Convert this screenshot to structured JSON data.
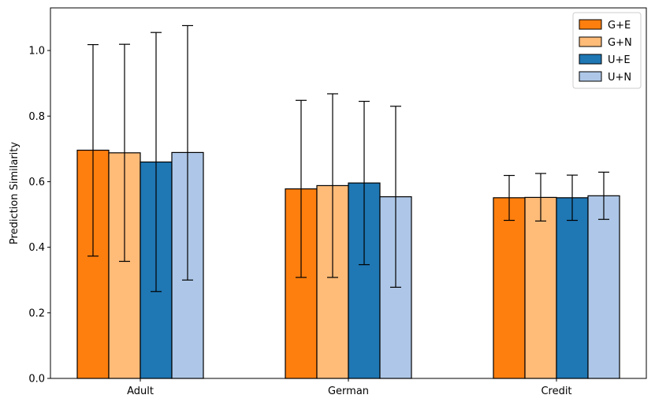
{
  "chart_data": {
    "type": "bar",
    "title": "",
    "xlabel": "",
    "ylabel": "Prediction Similarity",
    "ylim": [
      0,
      1.13
    ],
    "yticks": [
      0.0,
      0.2,
      0.4,
      0.6,
      0.8,
      1.0
    ],
    "ytick_labels": [
      "0.0",
      "0.2",
      "0.4",
      "0.6",
      "0.8",
      "1.0"
    ],
    "categories": [
      "Adult",
      "German",
      "Credit"
    ],
    "legend_position": "top-right",
    "series": [
      {
        "name": "G+E",
        "color": "#ff7f0e",
        "values": [
          0.696,
          0.578,
          0.551
        ],
        "err_low": [
          0.373,
          0.308,
          0.482
        ],
        "err_high": [
          1.018,
          0.848,
          0.619
        ]
      },
      {
        "name": "G+N",
        "color": "#ffbb78",
        "values": [
          0.688,
          0.588,
          0.552
        ],
        "err_low": [
          0.357,
          0.308,
          0.48
        ],
        "err_high": [
          1.019,
          0.868,
          0.625
        ]
      },
      {
        "name": "U+E",
        "color": "#1f77b4",
        "values": [
          0.66,
          0.596,
          0.551
        ],
        "err_low": [
          0.265,
          0.347,
          0.482
        ],
        "err_high": [
          1.055,
          0.845,
          0.62
        ]
      },
      {
        "name": "U+N",
        "color": "#aec7e8",
        "values": [
          0.689,
          0.554,
          0.557
        ],
        "err_low": [
          0.3,
          0.278,
          0.485
        ],
        "err_high": [
          1.076,
          0.83,
          0.629
        ]
      }
    ]
  }
}
